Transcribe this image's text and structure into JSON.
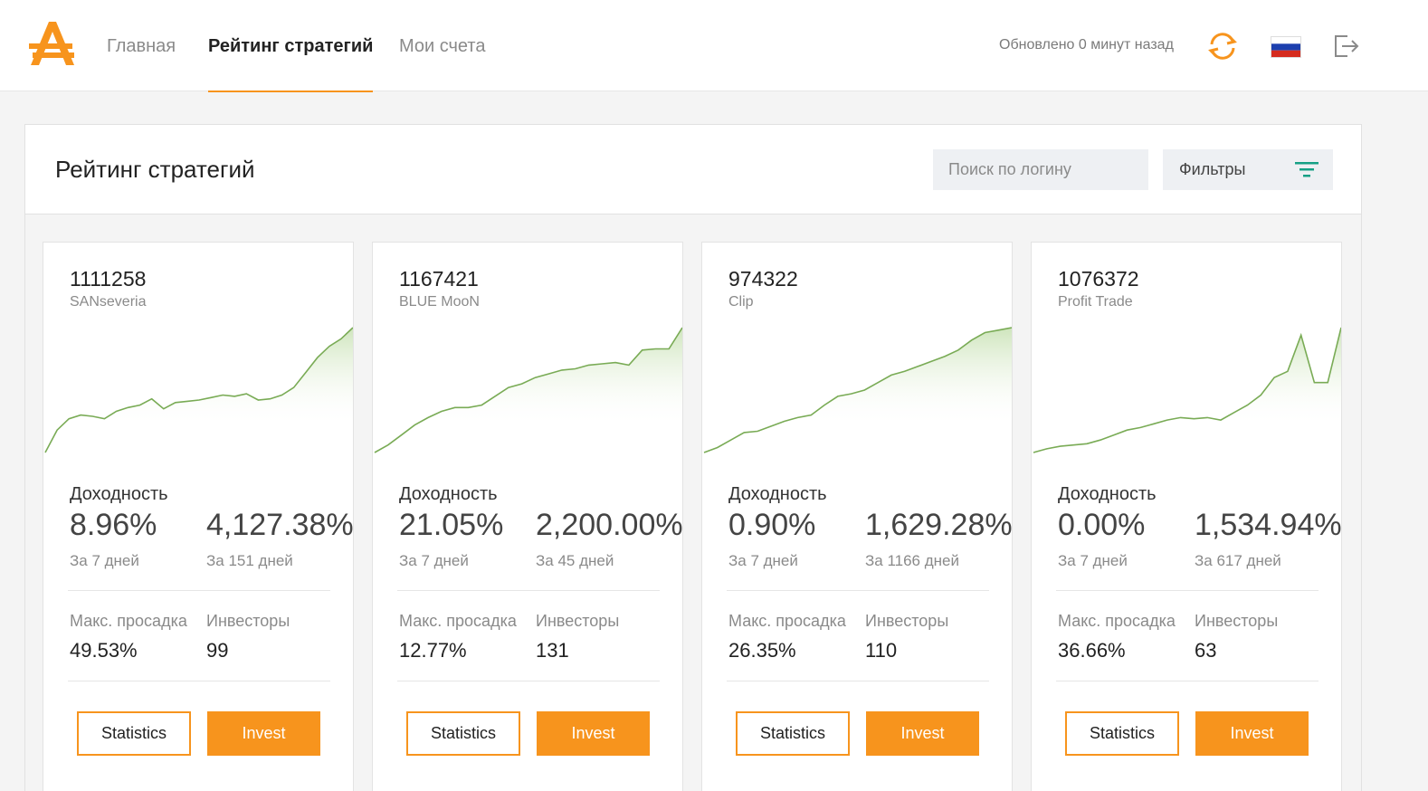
{
  "nav": {
    "items": [
      {
        "label": "Главная",
        "active": false
      },
      {
        "label": "Рейтинг стратегий",
        "active": true
      },
      {
        "label": "Мои счета",
        "active": false
      }
    ],
    "updated": "Обновлено 0 минут назад",
    "accent_color": "#f7941d",
    "icons": [
      "logo-icon",
      "refresh-icon",
      "russia-flag-icon",
      "logout-icon"
    ]
  },
  "panel": {
    "title": "Рейтинг стратегий",
    "search_placeholder": "Поиск по логину",
    "filters_label": "Фильтры"
  },
  "labels": {
    "yield": "Доходность",
    "max_drawdown": "Макс. просадка",
    "investors": "Инвесторы",
    "statistics": "Statistics",
    "invest": "Invest"
  },
  "cards": [
    {
      "account": "1111258",
      "login": "SANseveria",
      "yield_7d": "8.96%",
      "yield_7d_label": "За 7 дней",
      "yield_total": "4,127.38%",
      "yield_total_label": "За 151 дней",
      "max_drawdown": "49.53%",
      "investors": "99",
      "sparkline": [
        0.0,
        0.18,
        0.27,
        0.3,
        0.29,
        0.27,
        0.33,
        0.36,
        0.38,
        0.43,
        0.35,
        0.4,
        0.41,
        0.42,
        0.44,
        0.46,
        0.45,
        0.47,
        0.42,
        0.43,
        0.46,
        0.52,
        0.64,
        0.76,
        0.85,
        0.91,
        1.0
      ]
    },
    {
      "account": "1167421",
      "login": "BLUE MooN",
      "yield_7d": "21.05%",
      "yield_7d_label": "За 7 дней",
      "yield_total": "2,200.00%",
      "yield_total_label": "За 45 дней",
      "max_drawdown": "12.77%",
      "investors": "131",
      "sparkline": [
        0.0,
        0.06,
        0.14,
        0.22,
        0.28,
        0.33,
        0.36,
        0.36,
        0.38,
        0.45,
        0.52,
        0.55,
        0.6,
        0.63,
        0.66,
        0.67,
        0.7,
        0.71,
        0.72,
        0.7,
        0.82,
        0.83,
        0.83,
        1.0
      ]
    },
    {
      "account": "974322",
      "login": "Clip",
      "yield_7d": "0.90%",
      "yield_7d_label": "За 7 дней",
      "yield_total": "1,629.28%",
      "yield_total_label": "За 1166 дней",
      "max_drawdown": "26.35%",
      "investors": "110",
      "sparkline": [
        0.0,
        0.04,
        0.1,
        0.16,
        0.17,
        0.21,
        0.25,
        0.28,
        0.3,
        0.38,
        0.45,
        0.47,
        0.5,
        0.56,
        0.62,
        0.65,
        0.69,
        0.73,
        0.77,
        0.82,
        0.9,
        0.96,
        0.98,
        1.0
      ]
    },
    {
      "account": "1076372",
      "login": "Profit Trade",
      "yield_7d": "0.00%",
      "yield_7d_label": "За 7 дней",
      "yield_total": "1,534.94%",
      "yield_total_label": "За 617 дней",
      "max_drawdown": "36.66%",
      "investors": "63",
      "sparkline": [
        0.0,
        0.03,
        0.05,
        0.06,
        0.07,
        0.1,
        0.14,
        0.18,
        0.2,
        0.23,
        0.26,
        0.28,
        0.27,
        0.28,
        0.26,
        0.32,
        0.38,
        0.46,
        0.6,
        0.65,
        0.94,
        0.56,
        0.56,
        1.0
      ]
    }
  ]
}
